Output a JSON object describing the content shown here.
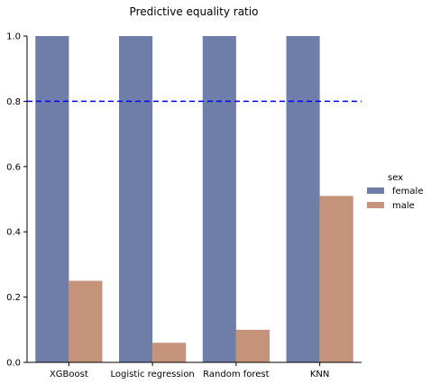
{
  "chart_data": {
    "type": "bar",
    "title": "Predictive equality ratio",
    "xlabel": "",
    "ylabel": "",
    "categories": [
      "XGBoost",
      "Logistic regression",
      "Random forest",
      "KNN"
    ],
    "series": [
      {
        "name": "female",
        "values": [
          1.0,
          1.0,
          1.0,
          1.0
        ],
        "color": "#6f7ea9"
      },
      {
        "name": "male",
        "values": [
          0.25,
          0.06,
          0.1,
          0.51
        ],
        "color": "#c5937a"
      }
    ],
    "ylim": [
      0,
      1.0
    ],
    "yticks": [
      "0.0",
      "0.2",
      "0.4",
      "0.6",
      "0.8",
      "1.0"
    ],
    "reference_line": {
      "value": 0.8,
      "style": "dashed",
      "color": "#0000ff"
    },
    "grid": false,
    "legend": {
      "title": "sex",
      "placement": "right"
    }
  }
}
